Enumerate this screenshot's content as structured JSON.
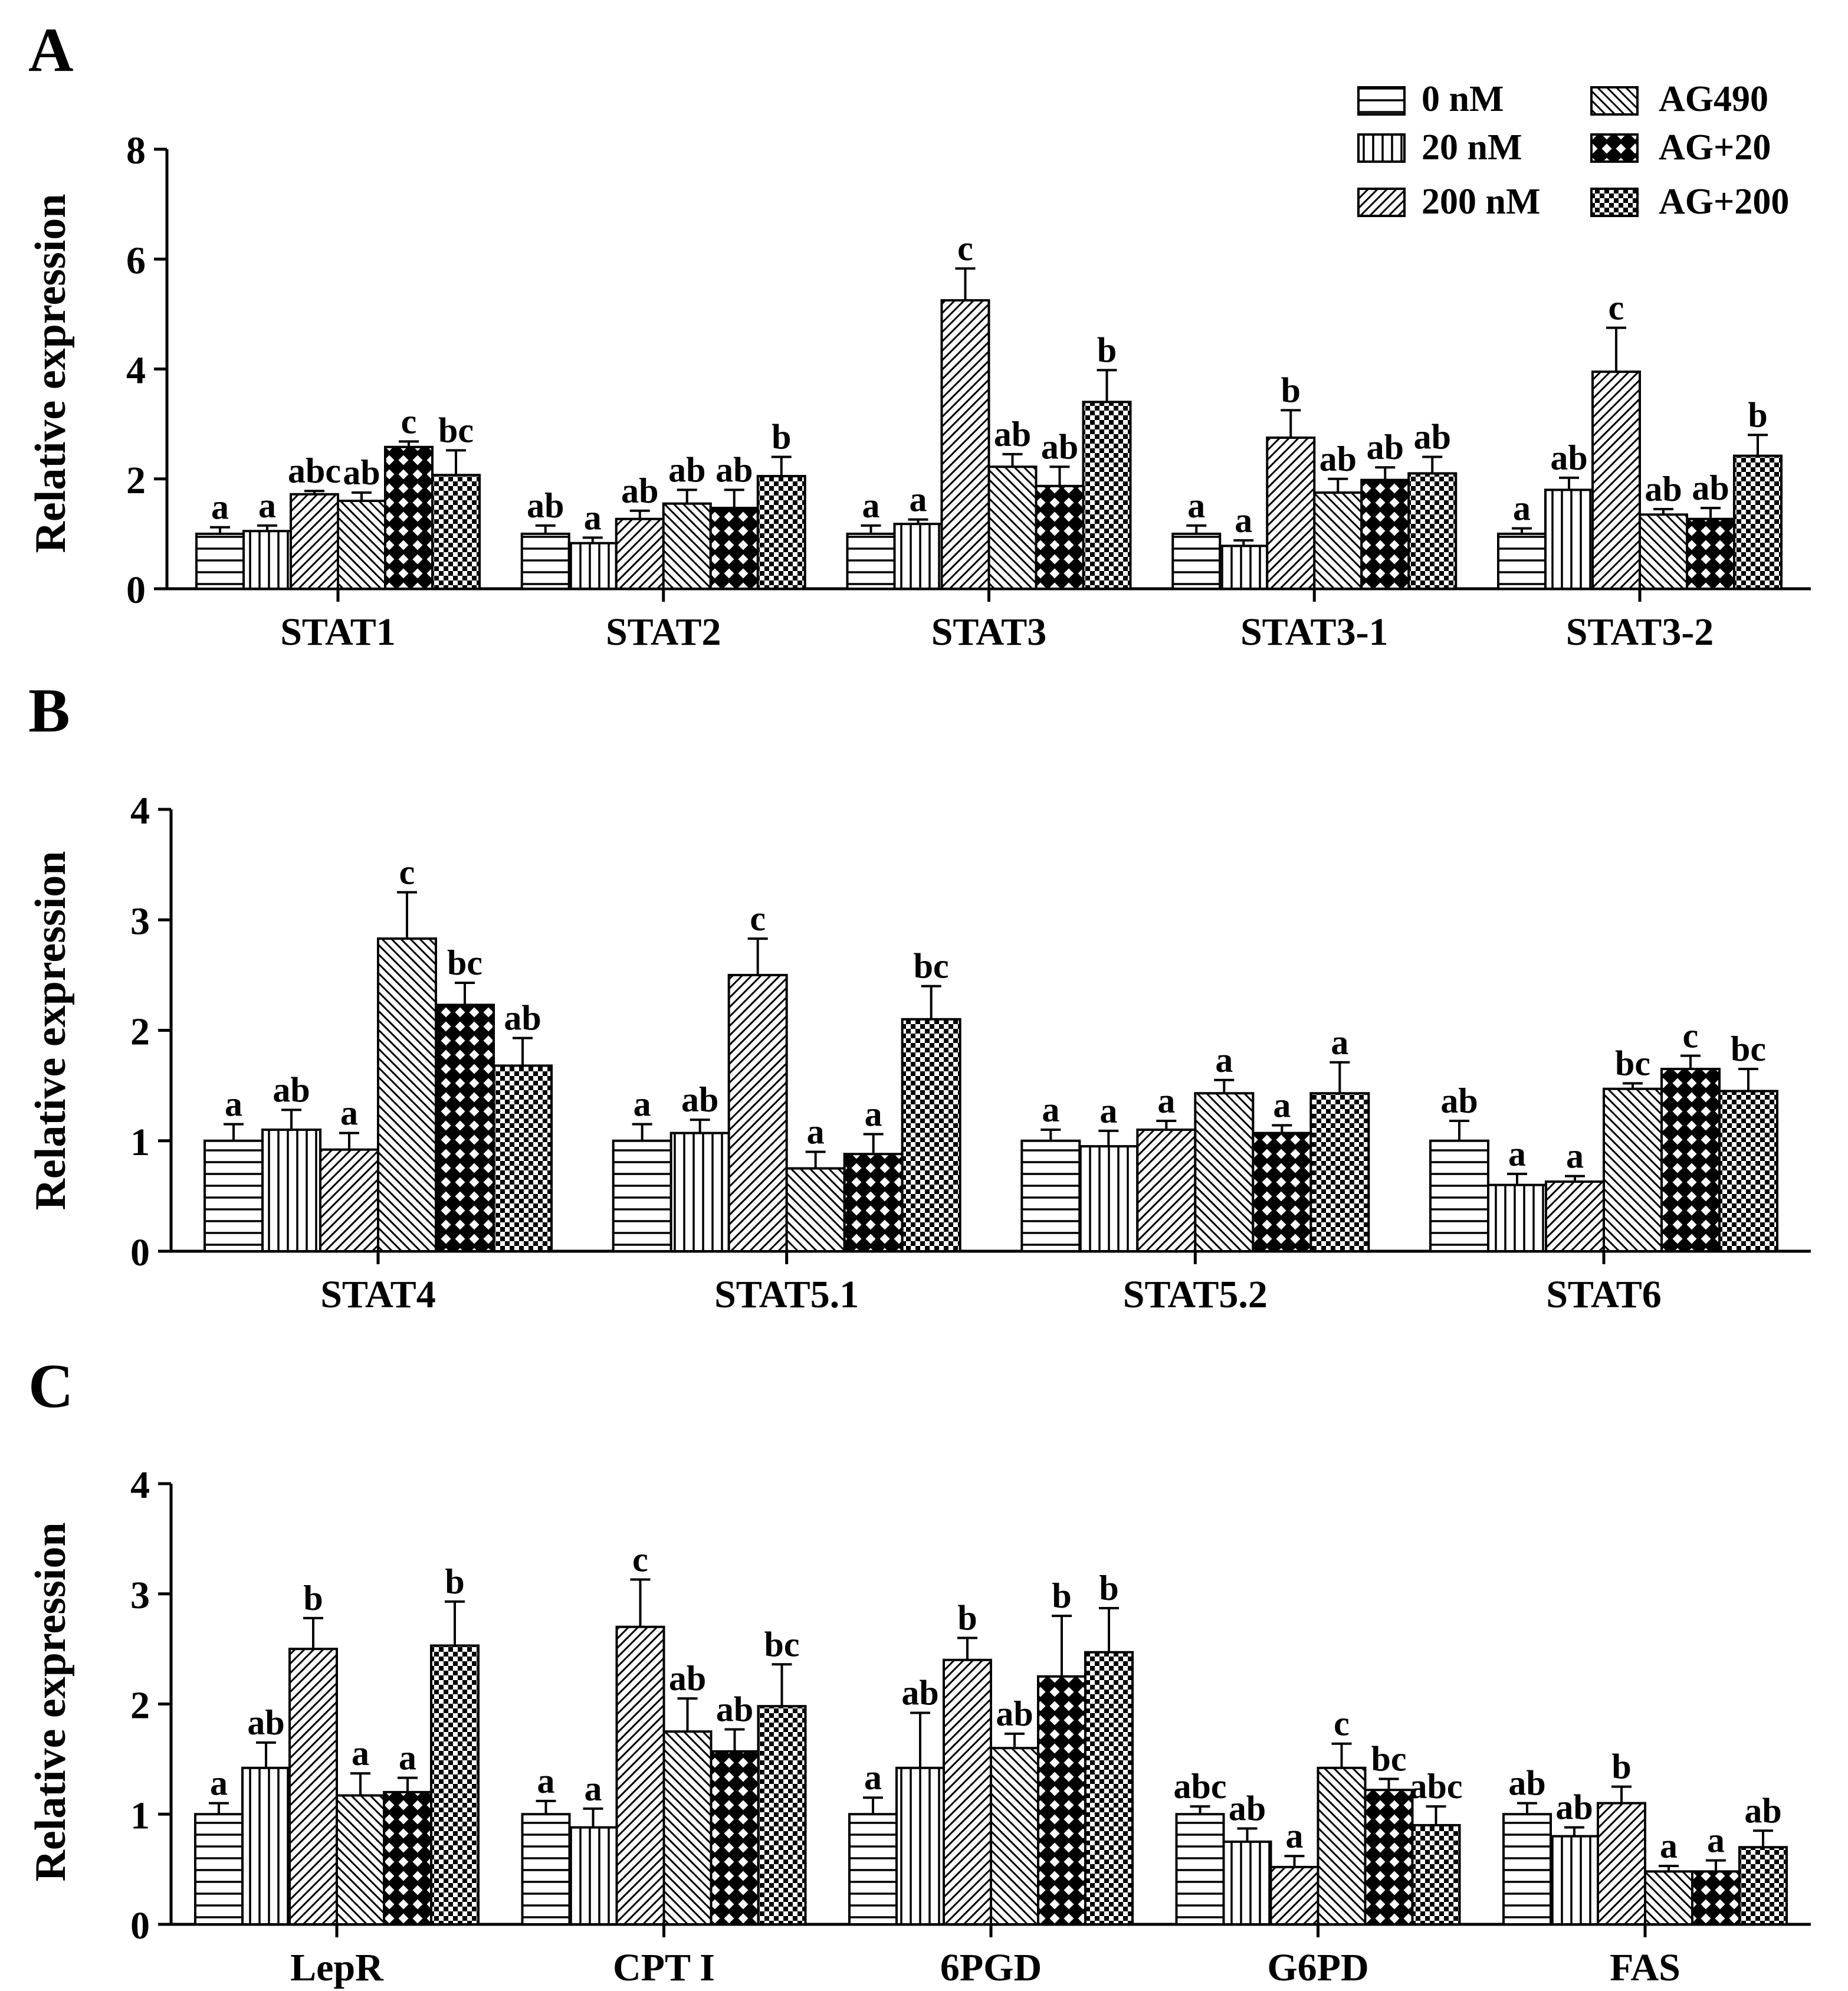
{
  "legend": [
    {
      "key": "0nM",
      "label": "0 nM",
      "pattern": "horizontal"
    },
    {
      "key": "20nM",
      "label": "20 nM",
      "pattern": "vertical"
    },
    {
      "key": "200nM",
      "label": "200 nM",
      "pattern": "diag-forward"
    },
    {
      "key": "AG490",
      "label": "AG490",
      "pattern": "diag-back"
    },
    {
      "key": "AG+20",
      "label": "AG+20",
      "pattern": "crosshatch"
    },
    {
      "key": "AG+200",
      "label": "AG+200",
      "pattern": "checker"
    }
  ],
  "chart_data": [
    {
      "type": "bar",
      "panel": "A",
      "ylabel": "Relative expression",
      "xlabel": "",
      "ylim": [
        0,
        8
      ],
      "yticks": [
        "0",
        "2",
        "4",
        "6",
        "8"
      ],
      "categories": [
        "STAT1",
        "STAT2",
        "STAT3",
        "STAT3-1",
        "STAT3-2"
      ],
      "series": [
        {
          "name": "0 nM",
          "values": [
            1.0,
            1.0,
            1.0,
            1.0,
            1.0
          ],
          "errors": [
            0.12,
            0.15,
            0.15,
            0.15,
            0.1
          ],
          "letters": [
            "a",
            "ab",
            "a",
            "a",
            "a"
          ]
        },
        {
          "name": "20 nM",
          "values": [
            1.05,
            0.83,
            1.18,
            0.78,
            1.8
          ],
          "errors": [
            0.1,
            0.1,
            0.08,
            0.1,
            0.22
          ],
          "letters": [
            "a",
            "a",
            "a",
            "a",
            "ab"
          ]
        },
        {
          "name": "200 nM",
          "values": [
            1.72,
            1.27,
            5.25,
            2.75,
            3.95
          ],
          "errors": [
            0.06,
            0.15,
            0.58,
            0.5,
            0.8
          ],
          "letters": [
            "abc",
            "ab",
            "c",
            "b",
            "c"
          ]
        },
        {
          "name": "AG490",
          "values": [
            1.6,
            1.55,
            2.22,
            1.75,
            1.35
          ],
          "errors": [
            0.15,
            0.25,
            0.23,
            0.25,
            0.1
          ],
          "letters": [
            "ab",
            "ab",
            "ab",
            "ab",
            "ab"
          ]
        },
        {
          "name": "AG+20",
          "values": [
            2.58,
            1.47,
            1.87,
            1.98,
            1.27
          ],
          "errors": [
            0.1,
            0.33,
            0.35,
            0.23,
            0.2
          ],
          "letters": [
            "c",
            "ab",
            "ab",
            "ab",
            "ab"
          ]
        },
        {
          "name": "AG+200",
          "values": [
            2.07,
            2.05,
            3.4,
            2.1,
            2.42
          ],
          "errors": [
            0.45,
            0.35,
            0.58,
            0.3,
            0.38
          ],
          "letters": [
            "bc",
            "b",
            "b",
            "ab",
            "b"
          ]
        }
      ]
    },
    {
      "type": "bar",
      "panel": "B",
      "ylabel": "Relative expression",
      "xlabel": "",
      "ylim": [
        0,
        4
      ],
      "yticks": [
        "0",
        "1",
        "2",
        "3",
        "4"
      ],
      "categories": [
        "STAT4",
        "STAT5.1",
        "STAT5.2",
        "STAT6"
      ],
      "series": [
        {
          "name": "0 nM",
          "values": [
            1.0,
            1.0,
            1.0,
            1.0
          ],
          "errors": [
            0.15,
            0.15,
            0.1,
            0.18
          ],
          "letters": [
            "a",
            "a",
            "a",
            "ab"
          ]
        },
        {
          "name": "20 nM",
          "values": [
            1.1,
            1.07,
            0.95,
            0.6
          ],
          "errors": [
            0.18,
            0.12,
            0.14,
            0.1
          ],
          "letters": [
            "ab",
            "ab",
            "a",
            "a"
          ]
        },
        {
          "name": "200 nM",
          "values": [
            0.92,
            2.5,
            1.1,
            0.63
          ],
          "errors": [
            0.15,
            0.33,
            0.08,
            0.05
          ],
          "letters": [
            "a",
            "c",
            "a",
            "a"
          ]
        },
        {
          "name": "AG490",
          "values": [
            2.83,
            0.75,
            1.43,
            1.47
          ],
          "errors": [
            0.42,
            0.15,
            0.12,
            0.05
          ],
          "letters": [
            "c",
            "a",
            "a",
            "bc"
          ]
        },
        {
          "name": "AG+20",
          "values": [
            2.23,
            0.88,
            1.07,
            1.65
          ],
          "errors": [
            0.2,
            0.18,
            0.07,
            0.12
          ],
          "letters": [
            "bc",
            "a",
            "a",
            "c"
          ]
        },
        {
          "name": "AG+200",
          "values": [
            1.68,
            2.1,
            1.43,
            1.45
          ],
          "errors": [
            0.25,
            0.3,
            0.28,
            0.2
          ],
          "letters": [
            "ab",
            "bc",
            "a",
            "bc"
          ]
        }
      ]
    },
    {
      "type": "bar",
      "panel": "C",
      "ylabel": "Relative expression",
      "xlabel": "",
      "ylim": [
        0,
        4
      ],
      "yticks": [
        "0",
        "1",
        "2",
        "3",
        "4"
      ],
      "categories": [
        "LepR",
        "CPT I",
        "6PGD",
        "G6PD",
        "FAS"
      ],
      "series": [
        {
          "name": "0 nM",
          "values": [
            1.0,
            1.0,
            1.0,
            1.0,
            1.0
          ],
          "errors": [
            0.1,
            0.12,
            0.15,
            0.07,
            0.1
          ],
          "letters": [
            "a",
            "a",
            "a",
            "abc",
            "ab"
          ]
        },
        {
          "name": "20 nM",
          "values": [
            1.42,
            0.88,
            1.42,
            0.75,
            0.8
          ],
          "errors": [
            0.23,
            0.17,
            0.5,
            0.12,
            0.08
          ],
          "letters": [
            "ab",
            "a",
            "ab",
            "ab",
            "ab"
          ]
        },
        {
          "name": "200 nM",
          "values": [
            2.5,
            2.7,
            2.4,
            0.52,
            1.1
          ],
          "errors": [
            0.28,
            0.43,
            0.2,
            0.1,
            0.15
          ],
          "letters": [
            "b",
            "c",
            "b",
            "a",
            "b"
          ]
        },
        {
          "name": "AG490",
          "values": [
            1.17,
            1.75,
            1.6,
            1.42,
            0.48
          ],
          "errors": [
            0.2,
            0.3,
            0.13,
            0.22,
            0.05
          ],
          "letters": [
            "a",
            "ab",
            "ab",
            "c",
            "a"
          ]
        },
        {
          "name": "AG+20",
          "values": [
            1.2,
            1.57,
            2.25,
            1.22,
            0.48
          ],
          "errors": [
            0.13,
            0.2,
            0.55,
            0.1,
            0.1
          ],
          "letters": [
            "a",
            "ab",
            "b",
            "bc",
            "a"
          ]
        },
        {
          "name": "AG+200",
          "values": [
            2.53,
            1.98,
            2.47,
            0.9,
            0.7
          ],
          "errors": [
            0.4,
            0.38,
            0.4,
            0.17,
            0.15
          ],
          "letters": [
            "b",
            "bc",
            "b",
            "abc",
            "ab"
          ]
        }
      ]
    }
  ]
}
